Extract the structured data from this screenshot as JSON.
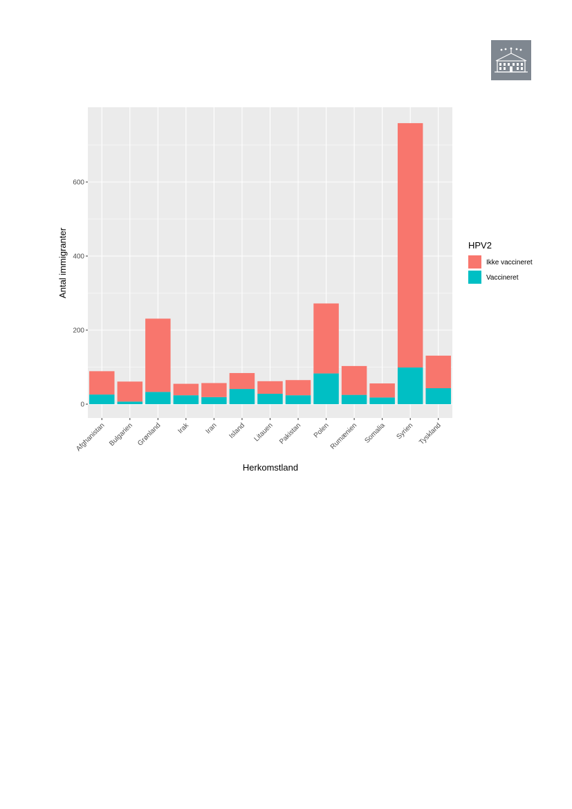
{
  "logo": {
    "icon": "building-logo-icon",
    "background": "#7f8790"
  },
  "chart_data": {
    "type": "bar",
    "stacked": true,
    "xlabel": "Herkomstland",
    "ylabel": "Antal immigranter",
    "ylim": [
      0,
      800
    ],
    "yticks": [
      0,
      200,
      400,
      600
    ],
    "grid": true,
    "legend": {
      "title": "HPV2",
      "placement": "right"
    },
    "categories": [
      "Afghanistan",
      "Bulgarien",
      "Grønland",
      "Irak",
      "Iran",
      "Island",
      "Litauen",
      "Pakistan",
      "Polen",
      "Rumænien",
      "Somalia",
      "Syrien",
      "Tyskland"
    ],
    "series": [
      {
        "name": "Vaccineret",
        "color": "#00bfc4",
        "values": [
          26,
          7,
          33,
          24,
          19,
          41,
          28,
          24,
          83,
          25,
          18,
          99,
          43
        ]
      },
      {
        "name": "Ikke vaccineret",
        "color": "#f8766d",
        "values": [
          63,
          54,
          198,
          31,
          38,
          43,
          34,
          41,
          189,
          78,
          38,
          660,
          88
        ]
      }
    ],
    "legend_order": [
      "Ikke vaccineret",
      "Vaccineret"
    ],
    "colors": {
      "panel": "#ebebeb",
      "grid": "#ffffff",
      "tick": "#333333"
    }
  }
}
